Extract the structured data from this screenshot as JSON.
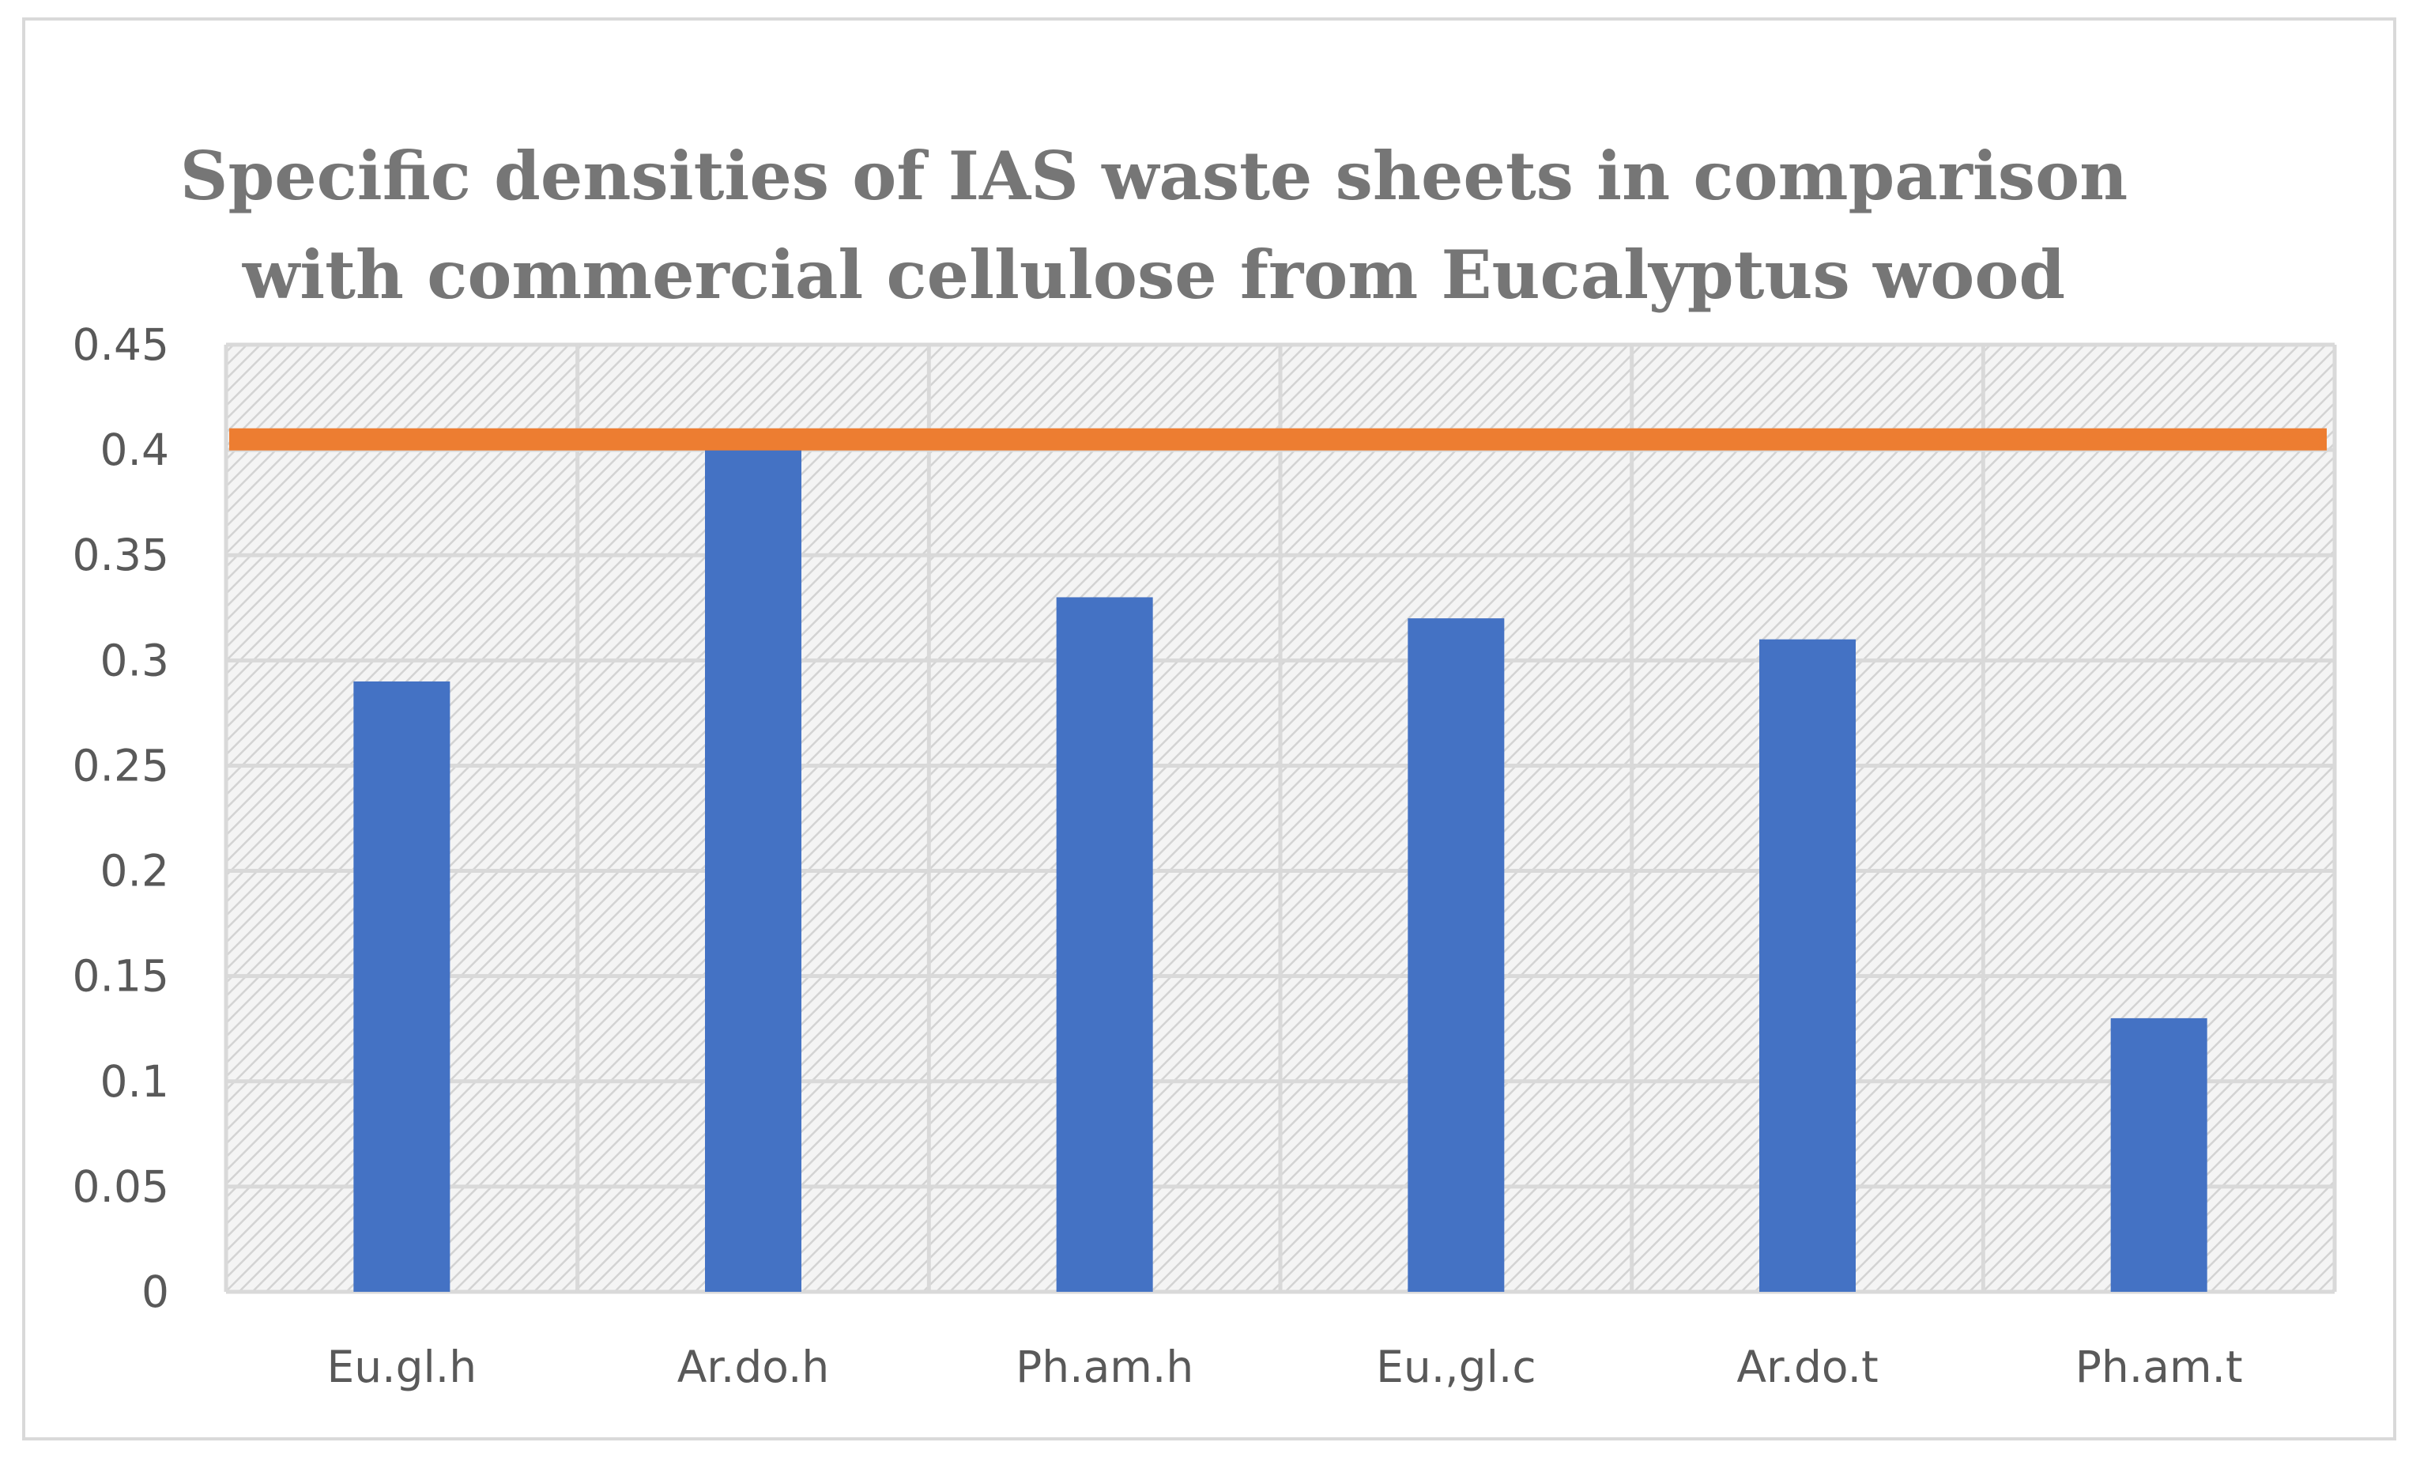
{
  "chart_data": {
    "type": "bar",
    "title_lines": [
      "Specific densities of IAS waste sheets in comparison",
      "with commercial cellulose from Eucalyptus wood"
    ],
    "categories": [
      "Eu.gl.h",
      "Ar.do.h",
      "Ph.am.h",
      "Eu.,gl.c",
      "Ar.do.t",
      "Ph.am.t"
    ],
    "series": [
      {
        "values": [
          0.29,
          0.41,
          0.33,
          0.32,
          0.31,
          0.13
        ],
        "color": "#4472c4"
      }
    ],
    "reference_line": {
      "value": 0.405,
      "color": "#ed7d31"
    },
    "yticks": [
      "0",
      "0.05",
      "0.1",
      "0.15",
      "0.2",
      "0.25",
      "0.3",
      "0.35",
      "0.4",
      "0.45"
    ],
    "ylim": [
      0,
      0.45
    ],
    "grid": true,
    "plot_background": "hatched light gray",
    "gridline_color": "#d9d9d9",
    "xlabel": "",
    "ylabel": ""
  }
}
